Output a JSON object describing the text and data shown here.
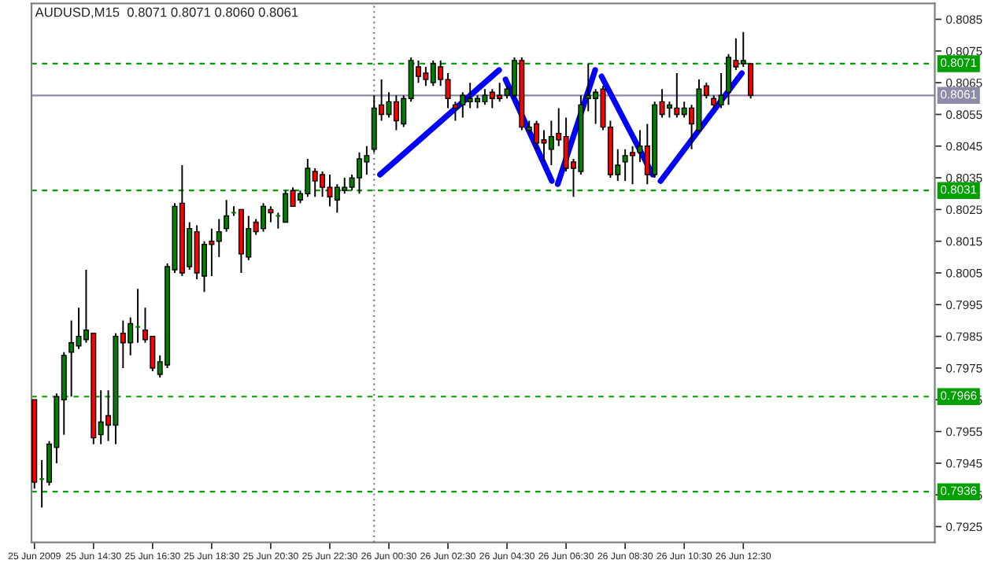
{
  "chart_data": {
    "type": "candlestick",
    "title": "AUDUSD,M15  0.8071 0.8071 0.8060 0.8061",
    "x": [
      "2009-06-25T12:30",
      "2009-06-25T12:45",
      "2009-06-25T13:00",
      "2009-06-25T13:15",
      "2009-06-25T13:30",
      "2009-06-25T13:45",
      "2009-06-25T14:00",
      "2009-06-25T14:15",
      "2009-06-25T14:30",
      "2009-06-25T14:45",
      "2009-06-25T15:00",
      "2009-06-25T15:15",
      "2009-06-25T15:30",
      "2009-06-25T15:45",
      "2009-06-25T16:00",
      "2009-06-25T16:15",
      "2009-06-25T16:30",
      "2009-06-25T16:45",
      "2009-06-25T17:00",
      "2009-06-25T17:15",
      "2009-06-25T17:30",
      "2009-06-25T17:45",
      "2009-06-25T18:00",
      "2009-06-25T18:15",
      "2009-06-25T18:30",
      "2009-06-25T18:45",
      "2009-06-25T19:00",
      "2009-06-25T19:15",
      "2009-06-25T19:30",
      "2009-06-25T19:45",
      "2009-06-25T20:00",
      "2009-06-25T20:15",
      "2009-06-25T20:30",
      "2009-06-25T20:45",
      "2009-06-25T21:00",
      "2009-06-25T21:15",
      "2009-06-25T21:30",
      "2009-06-25T21:45",
      "2009-06-25T22:00",
      "2009-06-25T22:15",
      "2009-06-25T22:30",
      "2009-06-25T22:45",
      "2009-06-25T23:00",
      "2009-06-25T23:15",
      "2009-06-25T23:30",
      "2009-06-25T23:45",
      "2009-06-26T00:00",
      "2009-06-26T00:15",
      "2009-06-26T00:30",
      "2009-06-26T00:45",
      "2009-06-26T01:00",
      "2009-06-26T01:15",
      "2009-06-26T01:30",
      "2009-06-26T01:45",
      "2009-06-26T02:00",
      "2009-06-26T02:15",
      "2009-06-26T02:30",
      "2009-06-26T02:45",
      "2009-06-26T03:00",
      "2009-06-26T03:15",
      "2009-06-26T03:30",
      "2009-06-26T03:45",
      "2009-06-26T04:00",
      "2009-06-26T04:15",
      "2009-06-26T04:30",
      "2009-06-26T04:45",
      "2009-06-26T05:00",
      "2009-06-26T05:15",
      "2009-06-26T05:30",
      "2009-06-26T05:45",
      "2009-06-26T06:00",
      "2009-06-26T06:15",
      "2009-06-26T06:30",
      "2009-06-26T06:45",
      "2009-06-26T07:00",
      "2009-06-26T07:15",
      "2009-06-26T07:30",
      "2009-06-26T07:45",
      "2009-06-26T08:00",
      "2009-06-26T08:15",
      "2009-06-26T08:30",
      "2009-06-26T08:45",
      "2009-06-26T09:00",
      "2009-06-26T09:15",
      "2009-06-26T09:30",
      "2009-06-26T09:45",
      "2009-06-26T10:00",
      "2009-06-26T10:15",
      "2009-06-26T10:30",
      "2009-06-26T10:45",
      "2009-06-26T11:00",
      "2009-06-26T11:15",
      "2009-06-26T11:30",
      "2009-06-26T11:45",
      "2009-06-26T12:00",
      "2009-06-26T12:15",
      "2009-06-26T12:30",
      "2009-06-26T12:45"
    ],
    "ohlc": [
      [
        0.7965,
        0.7965,
        0.7937,
        0.7939
      ],
      [
        0.794,
        0.7946,
        0.7931,
        0.794
      ],
      [
        0.7939,
        0.7952,
        0.7938,
        0.7951
      ],
      [
        0.795,
        0.7967,
        0.7945,
        0.7966
      ],
      [
        0.7965,
        0.798,
        0.7954,
        0.7979
      ],
      [
        0.798,
        0.799,
        0.7966,
        0.7983
      ],
      [
        0.7982,
        0.7994,
        0.7981,
        0.7985
      ],
      [
        0.7984,
        0.8006,
        0.7983,
        0.7987
      ],
      [
        0.7986,
        0.7986,
        0.7951,
        0.7953
      ],
      [
        0.7954,
        0.7968,
        0.7951,
        0.7958
      ],
      [
        0.796,
        0.7968,
        0.7952,
        0.7957
      ],
      [
        0.7957,
        0.7986,
        0.7951,
        0.7985
      ],
      [
        0.7986,
        0.799,
        0.7975,
        0.7983
      ],
      [
        0.7983,
        0.7991,
        0.7979,
        0.7989
      ],
      [
        0.7988,
        0.8,
        0.7983,
        0.7988
      ],
      [
        0.7987,
        0.7994,
        0.7983,
        0.7984
      ],
      [
        0.7985,
        0.7985,
        0.7974,
        0.7975
      ],
      [
        0.7973,
        0.7979,
        0.7972,
        0.7977
      ],
      [
        0.7976,
        0.8008,
        0.7975,
        0.8007
      ],
      [
        0.8006,
        0.8027,
        0.8005,
        0.8026
      ],
      [
        0.8027,
        0.8039,
        0.8004,
        0.8005
      ],
      [
        0.8007,
        0.8021,
        0.8006,
        0.8019
      ],
      [
        0.8018,
        0.802,
        0.8003,
        0.8005
      ],
      [
        0.8004,
        0.8015,
        0.7999,
        0.8014
      ],
      [
        0.8015,
        0.8019,
        0.8004,
        0.8014
      ],
      [
        0.8015,
        0.8022,
        0.801,
        0.8018
      ],
      [
        0.8019,
        0.8028,
        0.8018,
        0.8023
      ],
      [
        0.8024,
        0.8026,
        0.8023,
        0.8024
      ],
      [
        0.8025,
        0.8025,
        0.8005,
        0.8011
      ],
      [
        0.801,
        0.8023,
        0.8009,
        0.8019
      ],
      [
        0.8021,
        0.8022,
        0.8017,
        0.8018
      ],
      [
        0.8019,
        0.8027,
        0.8018,
        0.8026
      ],
      [
        0.8025,
        0.8026,
        0.8021,
        0.8024
      ],
      [
        0.8023,
        0.8024,
        0.8019,
        0.8023
      ],
      [
        0.8021,
        0.8031,
        0.8021,
        0.803
      ],
      [
        0.8031,
        0.8032,
        0.8026,
        0.8026
      ],
      [
        0.8028,
        0.8031,
        0.8027,
        0.803
      ],
      [
        0.803,
        0.8041,
        0.8029,
        0.8038
      ],
      [
        0.8037,
        0.8038,
        0.8029,
        0.8034
      ],
      [
        0.8036,
        0.8037,
        0.8029,
        0.8032
      ],
      [
        0.8032,
        0.8036,
        0.8026,
        0.8029
      ],
      [
        0.8028,
        0.8033,
        0.8024,
        0.8032
      ],
      [
        0.8031,
        0.8035,
        0.803,
        0.8032
      ],
      [
        0.8032,
        0.8036,
        0.8031,
        0.8035
      ],
      [
        0.8035,
        0.8043,
        0.803,
        0.8041
      ],
      [
        0.804,
        0.8045,
        0.8036,
        0.8042
      ],
      [
        0.8044,
        0.8061,
        0.8043,
        0.8057
      ],
      [
        0.8058,
        0.8066,
        0.8053,
        0.8055
      ],
      [
        0.8055,
        0.8062,
        0.8054,
        0.8059
      ],
      [
        0.8059,
        0.8061,
        0.805,
        0.8053
      ],
      [
        0.8052,
        0.8061,
        0.8051,
        0.806
      ],
      [
        0.806,
        0.8073,
        0.8059,
        0.8072
      ],
      [
        0.807,
        0.8072,
        0.8065,
        0.8067
      ],
      [
        0.8068,
        0.807,
        0.8064,
        0.8066
      ],
      [
        0.8065,
        0.8072,
        0.8064,
        0.8071
      ],
      [
        0.807,
        0.8072,
        0.8064,
        0.8066
      ],
      [
        0.8066,
        0.8068,
        0.8057,
        0.806
      ],
      [
        0.8058,
        0.8059,
        0.8053,
        0.8057
      ],
      [
        0.8058,
        0.8062,
        0.8054,
        0.8061
      ],
      [
        0.8059,
        0.8065,
        0.8057,
        0.806
      ],
      [
        0.8059,
        0.8061,
        0.8057,
        0.806
      ],
      [
        0.8059,
        0.8063,
        0.8058,
        0.8061
      ],
      [
        0.8062,
        0.8063,
        0.8057,
        0.806
      ],
      [
        0.8061,
        0.8065,
        0.8059,
        0.806
      ],
      [
        0.8061,
        0.8064,
        0.806,
        0.8063
      ],
      [
        0.8061,
        0.8073,
        0.806,
        0.8072
      ],
      [
        0.8072,
        0.8073,
        0.805,
        0.8051
      ],
      [
        0.805,
        0.8053,
        0.8049,
        0.8051
      ],
      [
        0.8052,
        0.8053,
        0.8044,
        0.8046
      ],
      [
        0.8047,
        0.805,
        0.804,
        0.8046
      ],
      [
        0.8044,
        0.8053,
        0.8039,
        0.8048
      ],
      [
        0.8049,
        0.8057,
        0.8045,
        0.8047
      ],
      [
        0.8048,
        0.8054,
        0.8037,
        0.8038
      ],
      [
        0.804,
        0.8041,
        0.8029,
        0.8038
      ],
      [
        0.8037,
        0.8061,
        0.8036,
        0.8058
      ],
      [
        0.806,
        0.8071,
        0.8056,
        0.8061
      ],
      [
        0.806,
        0.8063,
        0.8052,
        0.8062
      ],
      [
        0.8063,
        0.8064,
        0.805,
        0.8051
      ],
      [
        0.8051,
        0.8053,
        0.8035,
        0.8036
      ],
      [
        0.8036,
        0.8044,
        0.8034,
        0.8039
      ],
      [
        0.804,
        0.8044,
        0.8034,
        0.8042
      ],
      [
        0.8043,
        0.8045,
        0.8033,
        0.8042
      ],
      [
        0.8043,
        0.805,
        0.804,
        0.8045
      ],
      [
        0.8045,
        0.8052,
        0.8033,
        0.8036
      ],
      [
        0.8036,
        0.8059,
        0.8035,
        0.8058
      ],
      [
        0.8059,
        0.8063,
        0.8054,
        0.8055
      ],
      [
        0.8057,
        0.8059,
        0.8054,
        0.8058
      ],
      [
        0.8057,
        0.8068,
        0.8054,
        0.8055
      ],
      [
        0.8055,
        0.8059,
        0.8054,
        0.8057
      ],
      [
        0.8057,
        0.8058,
        0.8044,
        0.8052
      ],
      [
        0.805,
        0.8066,
        0.8049,
        0.8063
      ],
      [
        0.8064,
        0.8065,
        0.806,
        0.8061
      ],
      [
        0.806,
        0.8061,
        0.8057,
        0.8058
      ],
      [
        0.8058,
        0.8068,
        0.8057,
        0.8061
      ],
      [
        0.8062,
        0.8074,
        0.8058,
        0.8073
      ],
      [
        0.8072,
        0.8079,
        0.8069,
        0.807
      ],
      [
        0.8071,
        0.8081,
        0.807,
        0.8072
      ],
      [
        0.8071,
        0.8071,
        0.806,
        0.8061
      ]
    ],
    "colors": [
      "#ff0000",
      "#008000",
      "#008000",
      "#008000",
      "#008000",
      "#008000",
      "#008000",
      "#008000",
      "#ff0000",
      "#008000",
      "#ff0000",
      "#008000",
      "#ff0000",
      "#008000",
      "#008000",
      "#ff0000",
      "#ff0000",
      "#008000",
      "#008000",
      "#008000",
      "#ff0000",
      "#008000",
      "#ff0000",
      "#008000",
      "#ff0000",
      "#008000",
      "#008000",
      "#008000",
      "#ff0000",
      "#008000",
      "#ff0000",
      "#008000",
      "#ff0000",
      "#008000",
      "#008000",
      "#ff0000",
      "#008000",
      "#008000",
      "#ff0000",
      "#ff0000",
      "#ff0000",
      "#008000",
      "#008000",
      "#008000",
      "#008000",
      "#008000",
      "#008000",
      "#ff0000",
      "#008000",
      "#ff0000",
      "#008000",
      "#008000",
      "#ff0000",
      "#ff0000",
      "#008000",
      "#ff0000",
      "#ff0000",
      "#ff0000",
      "#008000",
      "#008000",
      "#008000",
      "#008000",
      "#ff0000",
      "#ff0000",
      "#008000",
      "#008000",
      "#ff0000",
      "#008000",
      "#ff0000",
      "#ff0000",
      "#008000",
      "#ff0000",
      "#ff0000",
      "#ff0000",
      "#008000",
      "#008000",
      "#008000",
      "#ff0000",
      "#ff0000",
      "#008000",
      "#008000",
      "#ff0000",
      "#008000",
      "#ff0000",
      "#008000",
      "#ff0000",
      "#008000",
      "#ff0000",
      "#008000",
      "#ff0000",
      "#008000",
      "#ff0000",
      "#ff0000",
      "#008000",
      "#008000",
      "#ff0000",
      "#008000",
      "#ff0000"
    ],
    "series": [
      {
        "type": "line",
        "color": "#0000ff",
        "x": [
          "2009-06-26T00:12",
          "2009-06-26T04:14"
        ],
        "values": [
          0.8036,
          0.8069
        ]
      },
      {
        "type": "line",
        "color": "#0000ff",
        "x": [
          "2009-06-26T04:27",
          "2009-06-26T06:01"
        ],
        "values": [
          0.8066,
          0.8034
        ]
      },
      {
        "type": "line",
        "color": "#0000ff",
        "x": [
          "2009-06-26T06:13",
          "2009-06-26T07:29"
        ],
        "values": [
          0.8033,
          0.8069
        ]
      },
      {
        "type": "line",
        "color": "#0000ff",
        "x": [
          "2009-06-26T07:42",
          "2009-06-26T09:26"
        ],
        "values": [
          0.8067,
          0.8036
        ]
      },
      {
        "type": "line",
        "color": "#0000ff",
        "x": [
          "2009-06-26T09:42",
          "2009-06-26T12:27"
        ],
        "values": [
          0.8034,
          0.8068
        ]
      }
    ],
    "ref_lines": [
      {
        "axis": "y",
        "value": 0.8071,
        "label": "0.8071",
        "color": "#00a000",
        "line_style": "dashed"
      },
      {
        "axis": "y",
        "value": 0.8061,
        "label": "0.8061",
        "color": "#8c8ca8",
        "line_style": "solid"
      },
      {
        "axis": "y",
        "value": 0.8031,
        "label": "0.8031",
        "color": "#00a000",
        "line_style": "dashed"
      },
      {
        "axis": "y",
        "value": 0.7966,
        "label": "0.7966",
        "color": "#00a000",
        "line_style": "dashed"
      },
      {
        "axis": "y",
        "value": 0.7936,
        "label": "0.7936",
        "color": "#00a000",
        "line_style": "dashed"
      },
      {
        "axis": "x",
        "value": "2009-06-26T00:00",
        "label": null,
        "color": "#808080",
        "line_style": "dotted"
      }
    ],
    "ylim": [
      0.792,
      0.809
    ],
    "yticks": [
      0.8085,
      0.8075,
      0.8065,
      0.8055,
      0.8045,
      0.8035,
      0.8025,
      0.8015,
      0.8005,
      0.7995,
      0.7985,
      0.7975,
      0.7965,
      0.7955,
      0.7945,
      0.7935,
      0.7925
    ],
    "xlim": [
      "2009-06-25T12:24",
      "2009-06-26T18:59"
    ],
    "xticks": [
      {
        "value": "2009-06-25T12:30",
        "label": "25 Jun 2009"
      },
      {
        "value": "2009-06-25T14:30",
        "label": "25 Jun 14:30"
      },
      {
        "value": "2009-06-25T16:30",
        "label": "25 Jun 16:30"
      },
      {
        "value": "2009-06-25T18:30",
        "label": "25 Jun 18:30"
      },
      {
        "value": "2009-06-25T20:30",
        "label": "25 Jun 20:30"
      },
      {
        "value": "2009-06-25T22:30",
        "label": "25 Jun 22:30"
      },
      {
        "value": "2009-06-26T00:30",
        "label": "26 Jun 00:30"
      },
      {
        "value": "2009-06-26T02:30",
        "label": "26 Jun 02:30"
      },
      {
        "value": "2009-06-26T04:30",
        "label": "26 Jun 04:30"
      },
      {
        "value": "2009-06-26T06:30",
        "label": "26 Jun 06:30"
      },
      {
        "value": "2009-06-26T08:30",
        "label": "26 Jun 08:30"
      },
      {
        "value": "2009-06-26T10:30",
        "label": "26 Jun 10:30"
      },
      {
        "value": "2009-06-26T12:30",
        "label": "26 Jun 12:30"
      }
    ]
  }
}
